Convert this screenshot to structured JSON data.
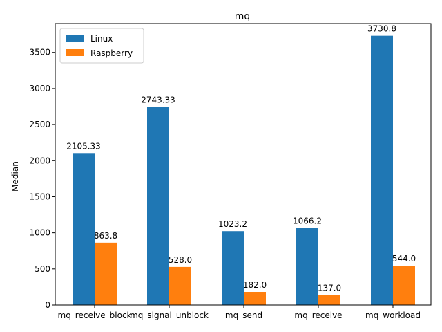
{
  "chart_data": {
    "type": "bar",
    "title": "mq",
    "xlabel": "",
    "ylabel": "Median",
    "categories": [
      "mq_receive_block",
      "mq_signal_unblock",
      "mq_send",
      "mq_receive",
      "mq_workload"
    ],
    "series": [
      {
        "name": "Linux",
        "color": "#1f77b4",
        "values": [
          2105.33,
          2743.33,
          1023.2,
          1066.2,
          3730.8
        ],
        "labels": [
          "2105.33",
          "2743.33",
          "1023.2",
          "1066.2",
          "3730.8"
        ]
      },
      {
        "name": "Raspberry",
        "color": "#ff7f0e",
        "values": [
          863.8,
          528.0,
          182.0,
          137.0,
          544.0
        ],
        "labels": [
          "863.8",
          "528.0",
          "182.0",
          "137.0",
          "544.0"
        ]
      }
    ],
    "ylim": [
      0,
      3900
    ],
    "yticks": [
      0,
      500,
      1000,
      1500,
      2000,
      2500,
      3000,
      3500
    ],
    "grid": false,
    "legend_position": "top-left"
  }
}
